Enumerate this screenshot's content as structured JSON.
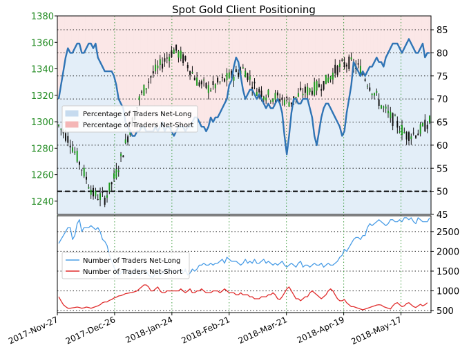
{
  "chart_data": [
    {
      "type": "line",
      "title": "Spot Gold Client Positioning",
      "x_ticks": [
        "2017-Nov-27",
        "2017-Dec-26",
        "2018-Jan-24",
        "2018-Feb-21",
        "2018-Mar-21",
        "2018-Apr-19",
        "2018-May-17"
      ],
      "price_axis": {
        "side": "left",
        "ylim": [
          1230,
          1380
        ],
        "ticks": [
          1240,
          1260,
          1280,
          1300,
          1320,
          1340,
          1360,
          1380
        ],
        "color": "#228b22"
      },
      "percent_axis": {
        "side": "right",
        "ylim": [
          45,
          88
        ],
        "ticks": [
          45,
          50,
          55,
          60,
          65,
          70,
          75,
          80,
          85
        ]
      },
      "reference_line": {
        "value": 50,
        "style": "dashed",
        "color": "#000000"
      },
      "grid": true,
      "legend": {
        "placement": "middle-left",
        "entries": [
          {
            "label": "Percentage of Traders Net-Long",
            "color": "#c6dbef"
          },
          {
            "label": "Percentage of Traders Net-Short",
            "color": "#f4b6b6"
          }
        ]
      },
      "series": [
        {
          "name": "Percentage of Traders Net-Long",
          "color": "#2f74b5",
          "values": [
            70,
            73,
            76,
            79,
            81,
            80,
            80,
            81,
            82,
            82,
            80,
            80,
            81,
            82,
            82,
            81,
            82,
            79,
            78,
            77,
            76,
            76,
            76,
            76,
            75,
            73,
            70,
            69,
            68,
            65,
            64,
            63,
            62,
            62,
            63,
            63,
            64,
            64,
            63,
            63,
            63,
            63,
            64,
            63,
            64,
            65,
            63,
            64,
            64,
            63,
            62,
            63,
            64,
            64,
            64,
            63,
            64,
            64,
            65,
            66,
            66,
            65,
            64,
            64,
            63,
            64,
            66,
            65,
            66,
            66,
            67,
            68,
            69,
            70,
            73,
            74,
            77,
            79,
            78,
            75,
            72,
            70,
            71,
            72,
            72,
            71,
            70,
            71,
            70,
            69,
            68,
            69,
            68,
            68,
            69,
            70,
            69,
            67,
            62,
            58,
            62,
            67,
            70,
            70,
            69,
            69,
            70,
            70,
            70,
            68,
            66,
            62,
            60,
            63,
            66,
            68,
            69,
            69,
            68,
            67,
            66,
            65,
            64,
            62,
            63,
            67,
            70,
            73,
            78,
            77,
            76,
            75,
            76,
            75,
            76,
            77,
            77,
            78,
            79,
            78,
            78,
            77,
            79,
            80,
            81,
            82,
            82,
            82,
            81,
            80,
            81,
            82,
            83,
            82,
            81,
            80,
            80,
            81,
            82,
            79,
            80,
            80
          ]
        }
      ]
    },
    {
      "type": "line",
      "ylim": [
        450,
        2900
      ],
      "y_ticks": [
        500,
        1000,
        1500,
        2000,
        2500
      ],
      "grid": true,
      "legend": {
        "placement": "middle-left",
        "entries": [
          {
            "label": "Number of Traders Net-Long",
            "color": "#4a9de6"
          },
          {
            "label": "Number of Traders Net-Short",
            "color": "#e02b2b"
          }
        ]
      },
      "series": [
        {
          "name": "Number of Traders Net-Long",
          "color": "#4a9de6",
          "values": [
            2200,
            2300,
            2400,
            2500,
            2600,
            2600,
            2300,
            2400,
            2700,
            2800,
            2500,
            2600,
            2600,
            2600,
            2650,
            2600,
            2550,
            2600,
            2500,
            2300,
            2250,
            2150,
            1900,
            1750,
            1600,
            1500,
            1400,
            1450,
            1500,
            1550,
            1500,
            1400,
            1450,
            1500,
            1550,
            1400,
            1450,
            1500,
            1500,
            1400,
            1350,
            1350,
            1450,
            1500,
            1400,
            1450,
            1500,
            1550,
            1500,
            1500,
            1450,
            1500,
            1500,
            1500,
            1450,
            1550,
            1400,
            1450,
            1550,
            1500,
            1550,
            1650,
            1650,
            1700,
            1650,
            1650,
            1700,
            1650,
            1700,
            1700,
            1750,
            1800,
            1700,
            1850,
            1800,
            1750,
            1750,
            1750,
            1700,
            1650,
            1700,
            1800,
            1700,
            1750,
            1700,
            1800,
            1700,
            1700,
            1750,
            1800,
            1700,
            1750,
            1700,
            1650,
            1700,
            1650,
            1700,
            1750,
            1650,
            1600,
            1650,
            1700,
            1650,
            1600,
            1700,
            1750,
            1600,
            1650,
            1650,
            1600,
            1650,
            1700,
            1650,
            1650,
            1700,
            1600,
            1650,
            1700,
            1650,
            1650,
            1700,
            1750,
            1850,
            1900,
            2050,
            2000,
            2100,
            2200,
            2300,
            2350,
            2350,
            2300,
            2400,
            2400,
            2600,
            2700,
            2650,
            2700,
            2750,
            2800,
            2750,
            2700,
            2650,
            2700,
            2800,
            2800,
            2750,
            2750,
            2800,
            2750,
            2850,
            2850,
            2800,
            2850,
            2750,
            2700,
            2850,
            2800,
            2750,
            2750,
            2750,
            2850
          ]
        },
        {
          "name": "Number of Traders Net-Short",
          "color": "#e02b2b",
          "values": [
            850,
            750,
            650,
            600,
            560,
            560,
            570,
            580,
            590,
            580,
            560,
            570,
            590,
            580,
            560,
            580,
            600,
            620,
            650,
            700,
            720,
            720,
            760,
            780,
            820,
            840,
            870,
            880,
            900,
            930,
            940,
            950,
            960,
            980,
            1000,
            1050,
            1100,
            1150,
            1150,
            1100,
            1000,
            1000,
            1050,
            1100,
            1000,
            950,
            950,
            1000,
            1000,
            1000,
            1000,
            1000,
            1000,
            1050,
            1000,
            950,
            1000,
            1050,
            950,
            950,
            1000,
            1000,
            1050,
            1000,
            950,
            950,
            950,
            1000,
            1000,
            1000,
            950,
            1000,
            1050,
            1000,
            950,
            950,
            950,
            900,
            900,
            950,
            900,
            900,
            900,
            850,
            850,
            800,
            800,
            800,
            850,
            850,
            850,
            900,
            900,
            950,
            900,
            800,
            780,
            850,
            950,
            1050,
            1100,
            1000,
            900,
            800,
            800,
            750,
            800,
            850,
            850,
            950,
            1000,
            950,
            900,
            850,
            800,
            850,
            900,
            1000,
            1050,
            1000,
            900,
            800,
            750,
            750,
            780,
            700,
            650,
            600,
            600,
            580,
            560,
            540,
            520,
            540,
            560,
            580,
            600,
            620,
            640,
            650,
            640,
            600,
            580,
            560,
            540,
            620,
            680,
            700,
            650,
            600,
            620,
            680,
            700,
            650,
            600,
            580,
            620,
            660,
            620,
            650,
            700
          ]
        }
      ]
    }
  ]
}
